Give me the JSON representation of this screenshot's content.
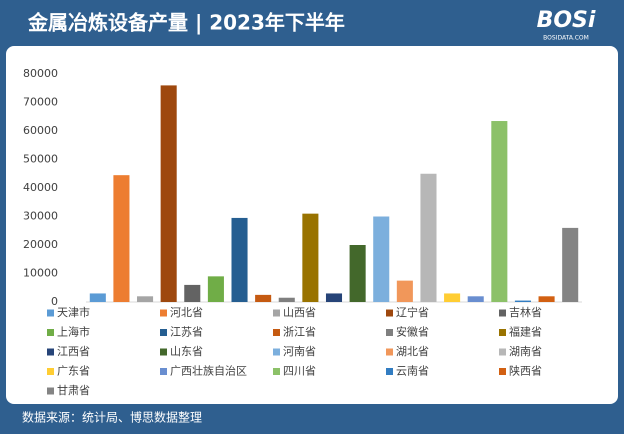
{
  "chart_data": {
    "type": "bar",
    "title": "金属冶炼设备产量 | 2023年下半年",
    "logo": "BOSi",
    "logo_sub": "BOSIDATA.COM",
    "source": "数据来源：统计局、博思数据整理",
    "categories": [
      "天津市",
      "河北省",
      "山西省",
      "辽宁省",
      "吉林省",
      "上海市",
      "江苏省",
      "浙江省",
      "安徽省",
      "福建省",
      "江西省",
      "山东省",
      "河南省",
      "湖北省",
      "湖南省",
      "广东省",
      "广西壮族自治区",
      "四川省",
      "云南省",
      "陕西省",
      "甘肃省"
    ],
    "values": [
      3000,
      44500,
      2000,
      76000,
      6000,
      9000,
      29500,
      2500,
      1500,
      31000,
      3000,
      20000,
      30000,
      7500,
      45000,
      3000,
      2000,
      63500,
      500,
      2000,
      26000
    ],
    "colors": [
      "#5b9bd5",
      "#ed7d31",
      "#a5a5a5",
      "#9e480e",
      "#636363",
      "#70ad47",
      "#255e91",
      "#c55a11",
      "#7f7f7f",
      "#997300",
      "#264478",
      "#43682b",
      "#7cafdd",
      "#f1975a",
      "#b7b7b7",
      "#ffcd33",
      "#698ed0",
      "#8cc168",
      "#327dc2",
      "#d26012",
      "#848484"
    ],
    "ylim": [
      0,
      80000
    ],
    "yticks": [
      0,
      10000,
      20000,
      30000,
      40000,
      50000,
      60000,
      70000,
      80000
    ],
    "grid": false
  }
}
